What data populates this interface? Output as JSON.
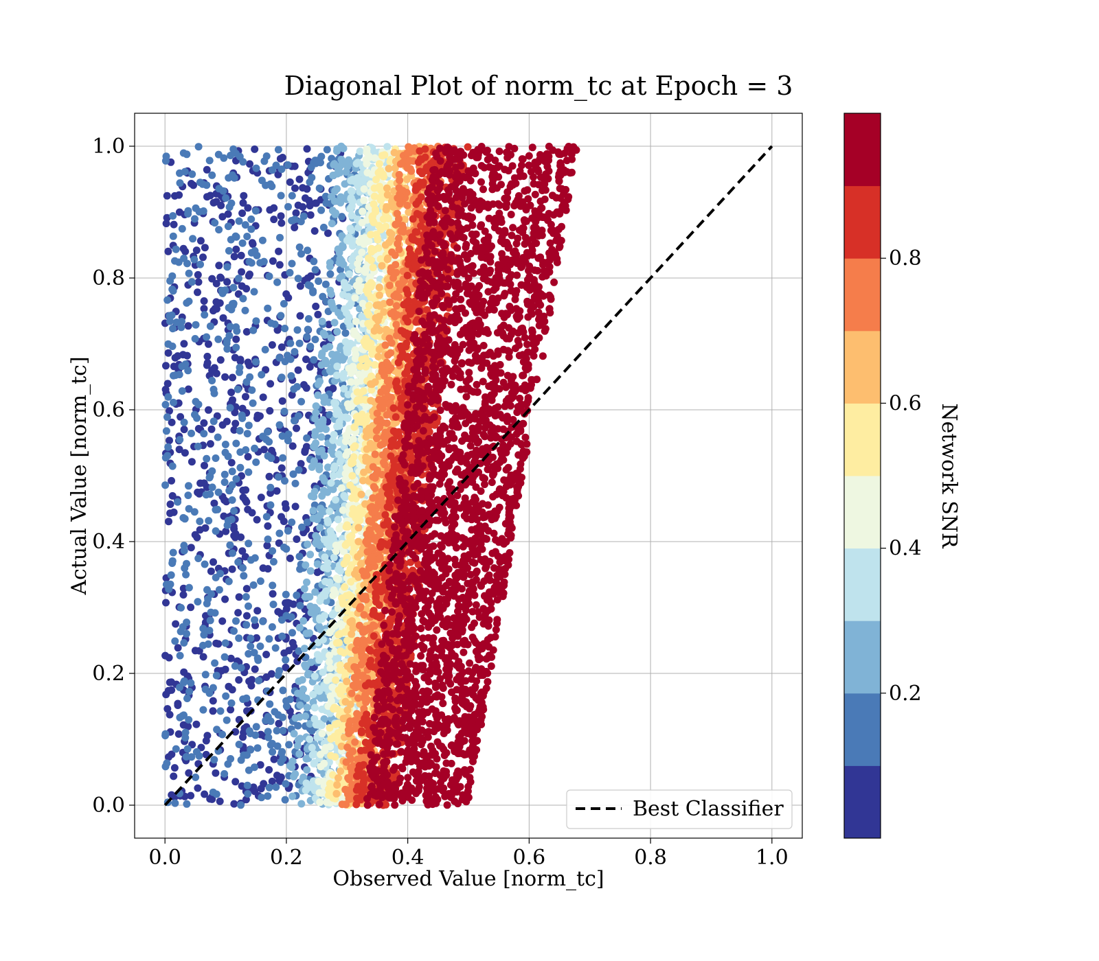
{
  "chart_data": {
    "type": "scatter",
    "title": "Diagonal Plot of norm_tc at Epoch = 3",
    "xlabel": "Observed Value [norm_tc]",
    "ylabel": "Actual Value [norm_tc]",
    "xlim": [
      -0.05,
      1.05
    ],
    "ylim": [
      -0.05,
      1.05
    ],
    "xticks": [
      "0.0",
      "0.2",
      "0.4",
      "0.6",
      "0.8",
      "1.0"
    ],
    "yticks": [
      "0.0",
      "0.2",
      "0.4",
      "0.6",
      "0.8",
      "1.0"
    ],
    "grid": true,
    "legend": {
      "placement": "lower-right",
      "entries": [
        {
          "label": "Best Classifier",
          "style": "dashed",
          "color": "#000000"
        }
      ]
    },
    "reference_line": {
      "name": "Best Classifier",
      "x": [
        0,
        1
      ],
      "y": [
        0,
        1
      ]
    },
    "colorbar": {
      "label": "Network SNR",
      "range": [
        0.0,
        1.0
      ],
      "ticks": [
        "0.2",
        "0.4",
        "0.6",
        "0.8"
      ],
      "colors": [
        "#313695",
        "#4a7ab7",
        "#80b3d6",
        "#bfe3ed",
        "#eef7e1",
        "#feeda1",
        "#fdbe6f",
        "#f57d4b",
        "#d73027",
        "#a50026"
      ]
    },
    "point_bands": [
      {
        "snr_level": 0.05,
        "x_range_at_y0": [
          0.0,
          0.24
        ],
        "x_range_at_y1": [
          0.0,
          0.3
        ],
        "density": "sparse"
      },
      {
        "snr_level": 0.15,
        "x_range_at_y0": [
          0.0,
          0.27
        ],
        "x_range_at_y1": [
          0.0,
          0.33
        ],
        "density": "sparse"
      },
      {
        "snr_level": 0.25,
        "x_range_at_y0": [
          0.2,
          0.29
        ],
        "x_range_at_y1": [
          0.28,
          0.35
        ],
        "density": "medium"
      },
      {
        "snr_level": 0.35,
        "x_range_at_y0": [
          0.23,
          0.31
        ],
        "x_range_at_y1": [
          0.31,
          0.37
        ],
        "density": "medium"
      },
      {
        "snr_level": 0.45,
        "x_range_at_y0": [
          0.25,
          0.32
        ],
        "x_range_at_y1": [
          0.33,
          0.39
        ],
        "density": "medium"
      },
      {
        "snr_level": 0.55,
        "x_range_at_y0": [
          0.26,
          0.33
        ],
        "x_range_at_y1": [
          0.35,
          0.41
        ],
        "density": "medium"
      },
      {
        "snr_level": 0.65,
        "x_range_at_y0": [
          0.28,
          0.34
        ],
        "x_range_at_y1": [
          0.37,
          0.43
        ],
        "density": "medium"
      },
      {
        "snr_level": 0.75,
        "x_range_at_y0": [
          0.29,
          0.36
        ],
        "x_range_at_y1": [
          0.39,
          0.46
        ],
        "density": "dense"
      },
      {
        "snr_level": 0.85,
        "x_range_at_y0": [
          0.31,
          0.38
        ],
        "x_range_at_y1": [
          0.42,
          0.5
        ],
        "density": "dense"
      },
      {
        "snr_level": 0.95,
        "x_range_at_y0": [
          0.33,
          0.5
        ],
        "x_range_at_y1": [
          0.44,
          0.68
        ],
        "density": "very-dense"
      }
    ]
  }
}
